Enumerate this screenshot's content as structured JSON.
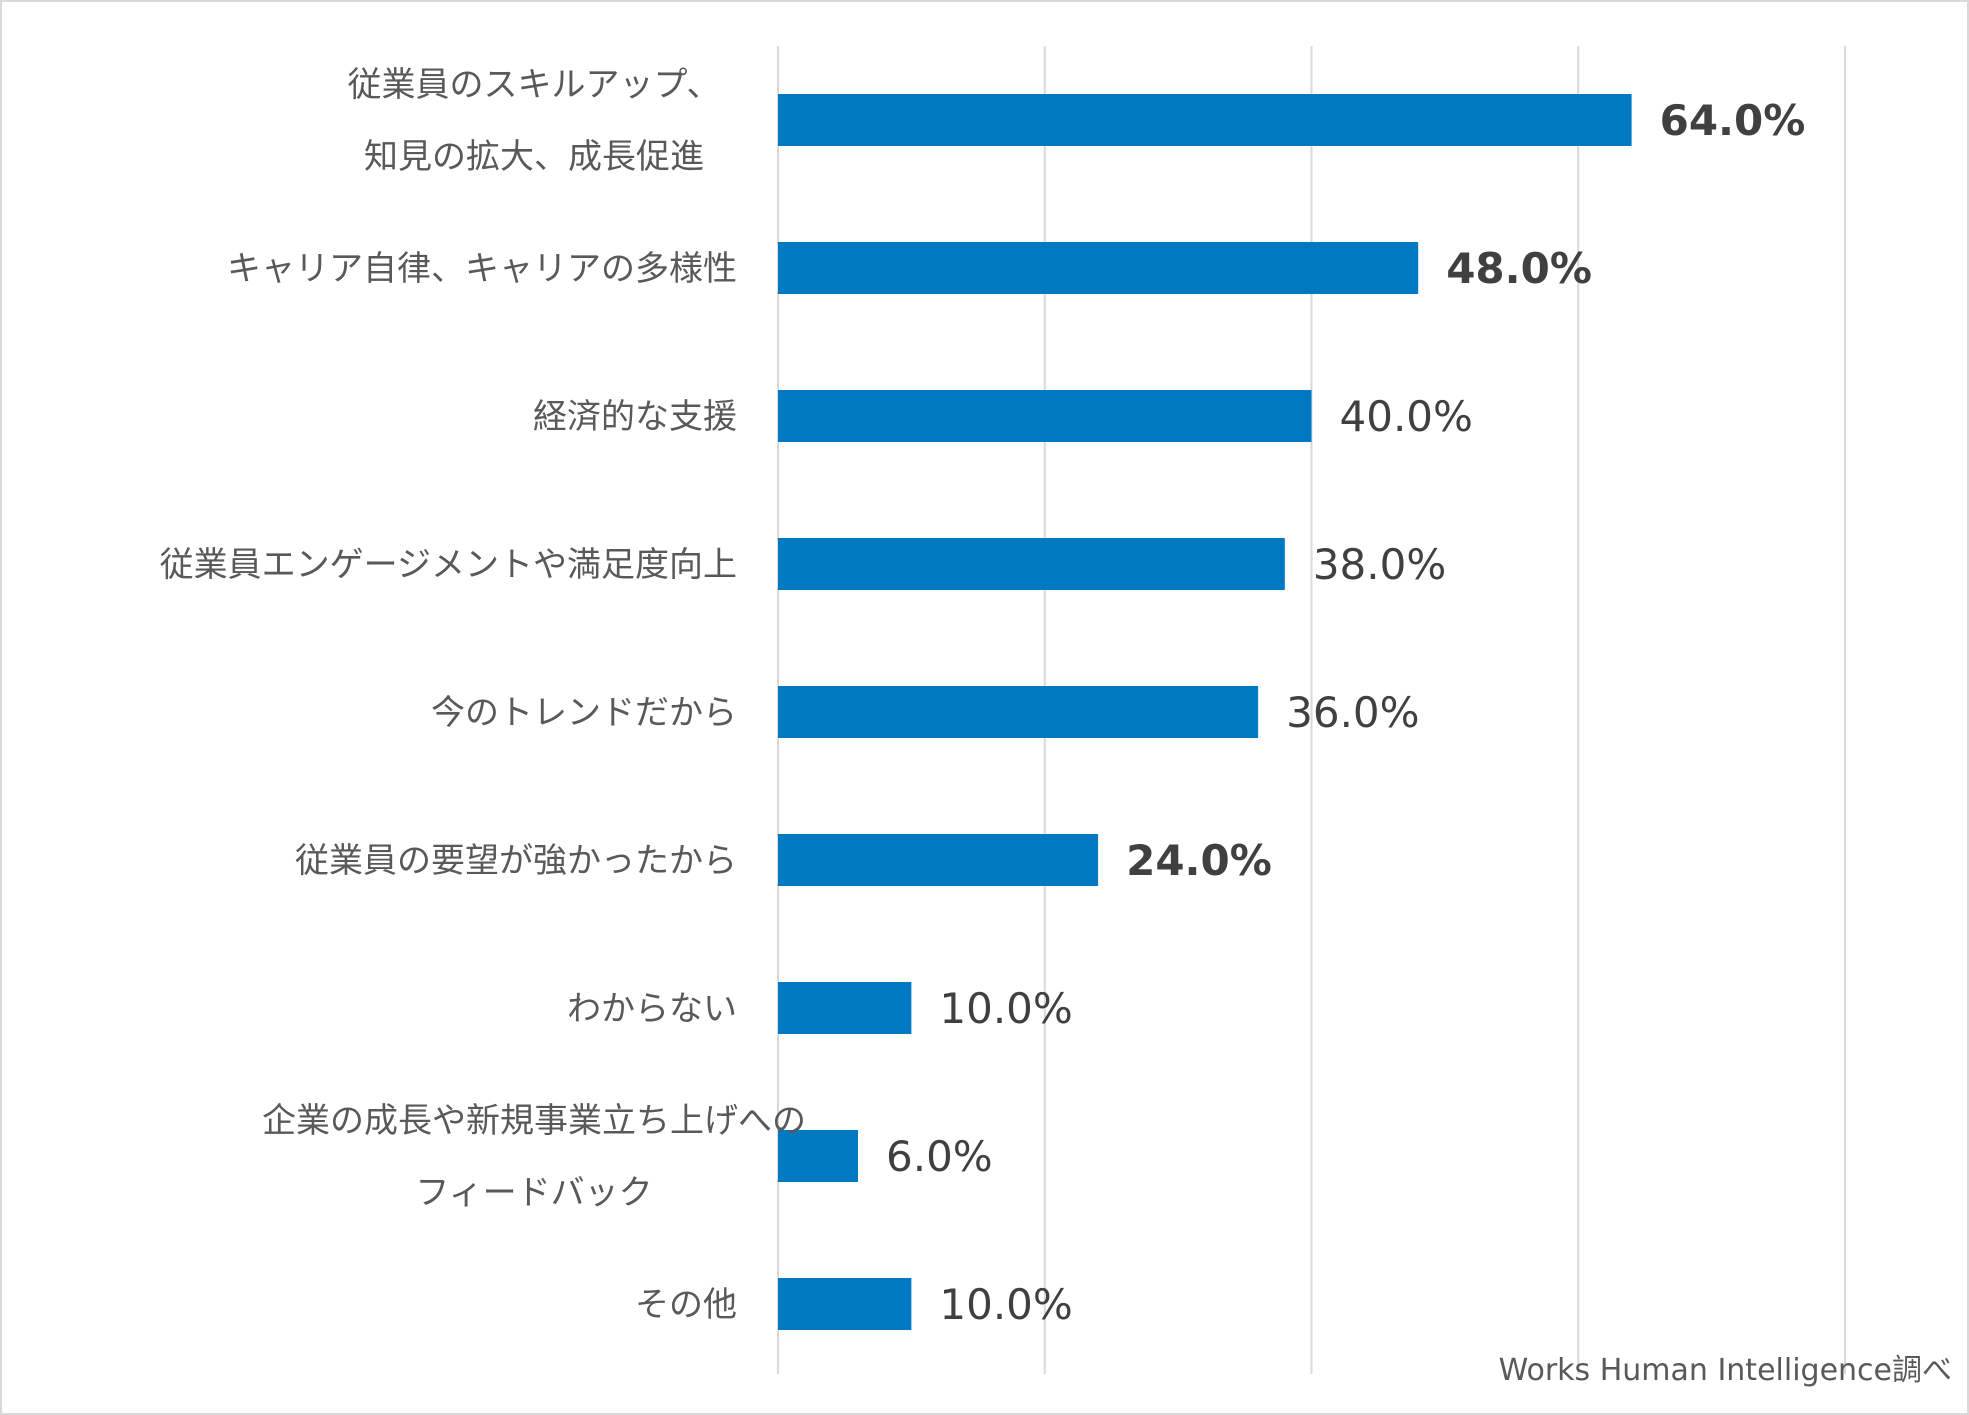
{
  "chart_data": {
    "type": "bar",
    "orientation": "horizontal",
    "title": "",
    "xlabel": "",
    "ylabel": "",
    "xlim": [
      0,
      80
    ],
    "grid": true,
    "bar_color": "#0079C2",
    "grid_color": "#D9D9D9",
    "categories": [
      [
        "従業員のスキルアップ、",
        "知見の拡大、成長促進"
      ],
      [
        "キャリア自律、キャリアの多様性"
      ],
      [
        "経済的な支援"
      ],
      [
        "従業員エンゲージメントや満足度向上"
      ],
      [
        "今のトレンドだから"
      ],
      [
        "従業員の要望が強かったから"
      ],
      [
        "わからない"
      ],
      [
        "企業の成長や新規事業立ち上げへの",
        "フィードバック"
      ],
      [
        "その他"
      ]
    ],
    "values": [
      64.0,
      48.0,
      40.0,
      38.0,
      36.0,
      24.0,
      10.0,
      6.0,
      10.0
    ],
    "value_labels": [
      "64.0%",
      "48.0%",
      "40.0%",
      "38.0%",
      "36.0%",
      "24.0%",
      "10.0%",
      "6.0%",
      "10.0%"
    ],
    "bold_labels": [
      true,
      true,
      false,
      false,
      false,
      true,
      false,
      false,
      false
    ]
  },
  "source_note": "Works Human Intelligence調べ"
}
